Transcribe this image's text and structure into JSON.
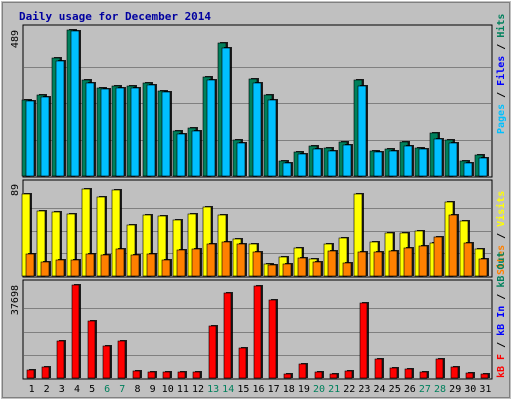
{
  "chart_data": {
    "type": "bar",
    "title": "Daily usage for December 2014",
    "days": [
      "1",
      "2",
      "3",
      "4",
      "5",
      "6",
      "7",
      "8",
      "9",
      "10",
      "11",
      "12",
      "13",
      "14",
      "15",
      "16",
      "17",
      "18",
      "19",
      "20",
      "21",
      "22",
      "23",
      "24",
      "25",
      "26",
      "27",
      "28",
      "29",
      "30",
      "31"
    ],
    "weekend_days": [
      "6",
      "7",
      "13",
      "14",
      "20",
      "21",
      "27",
      "28"
    ],
    "colors": {
      "weekday_label": "#000000",
      "weekend_label": "#00805c",
      "hits": "#00805c",
      "files": "#00c0ff",
      "visits": "#ffff00",
      "sites": "#ff8000",
      "kb_in": "#0000ff",
      "kb_out": "#00805c",
      "kb_f": "#ff0000",
      "separator": "#000000"
    },
    "panels": {
      "top": {
        "ymax_label": "489",
        "ymax": 489,
        "series": [
          {
            "name": "Hits",
            "values": [
              255,
              270,
              395,
              489,
              320,
              295,
              300,
              300,
              310,
              285,
              150,
              160,
              330,
              445,
              120,
              325,
              270,
              50,
              80,
              100,
              95,
              115,
              320,
              85,
              90,
              115,
              95,
              145,
              120,
              50,
              70
            ]
          },
          {
            "name": "Files",
            "values": [
              250,
              265,
              385,
              484,
              310,
              290,
              295,
              295,
              305,
              280,
              140,
              150,
              320,
              430,
              110,
              310,
              255,
              45,
              75,
              90,
              85,
              105,
              300,
              80,
              85,
              100,
              90,
              125,
              110,
              45,
              60
            ]
          }
        ]
      },
      "middle": {
        "ymax_label": "89",
        "ymax": 89,
        "series": [
          {
            "name": "Visits",
            "values": [
              80,
              64,
              63,
              61,
              85,
              77,
              84,
              50,
              60,
              59,
              55,
              61,
              67,
              60,
              36,
              31,
              12,
              19,
              27,
              17,
              31,
              37,
              80,
              33,
              42,
              42,
              44,
              32,
              72,
              54,
              26
            ]
          },
          {
            "name": "Sites",
            "values": [
              22,
              14,
              16,
              16,
              22,
              21,
              26,
              21,
              22,
              16,
              25,
              26,
              31,
              33,
              31,
              23,
              11,
              12,
              18,
              14,
              24,
              13,
              23,
              23,
              24,
              27,
              29,
              38,
              60,
              32,
              17
            ]
          }
        ]
      },
      "bottom": {
        "ymax_label": "37698",
        "ymax": 37698,
        "series": [
          {
            "name": "KB F",
            "values": [
              3100,
              4500,
              15000,
              37698,
              23000,
              13000,
              15000,
              3000,
              2500,
              2400,
              2400,
              2500,
              21000,
              34500,
              12000,
              37400,
              31700,
              1500,
              5500,
              2600,
              1500,
              2700,
              30500,
              7500,
              4200,
              3700,
              2500,
              7500,
              4500,
              2100,
              1700
            ]
          }
        ]
      }
    },
    "side_labels": {
      "top": [
        {
          "text": "Pages",
          "color": "#00c0ff"
        },
        {
          "text": " / ",
          "color": "#000000"
        },
        {
          "text": "Files",
          "color": "#0000ff"
        },
        {
          "text": " / ",
          "color": "#000000"
        },
        {
          "text": "Hits",
          "color": "#00805c"
        }
      ],
      "middle": [
        {
          "text": "Sites",
          "color": "#ff8000"
        },
        {
          "text": " / ",
          "color": "#000000"
        },
        {
          "text": "Visits",
          "color": "#ffff00"
        }
      ],
      "bottom": [
        {
          "text": "kB F",
          "color": "#ff0000"
        },
        {
          "text": " / ",
          "color": "#000000"
        },
        {
          "text": "kB In",
          "color": "#0000ff"
        },
        {
          "text": " / ",
          "color": "#000000"
        },
        {
          "text": "kB Out",
          "color": "#00805c"
        }
      ]
    }
  }
}
